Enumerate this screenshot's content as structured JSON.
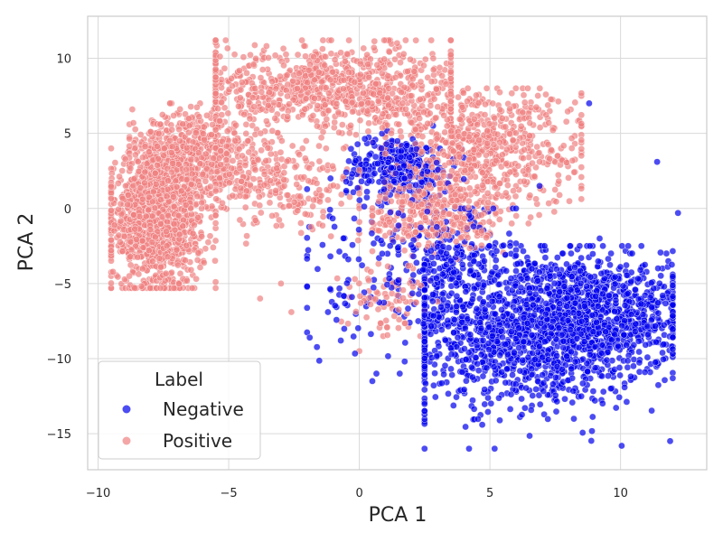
{
  "chart_data": {
    "type": "scatter",
    "title": "",
    "xlabel": "PCA 1",
    "ylabel": "PCA 2",
    "xlim": [
      -10.4,
      13.3
    ],
    "ylim": [
      -17.4,
      12.8
    ],
    "xticks": [
      -10,
      -5,
      0,
      5,
      10
    ],
    "yticks": [
      -15,
      -10,
      -5,
      0,
      5,
      10
    ],
    "xtick_labels": [
      "−10",
      "−5",
      "0",
      "5",
      "10"
    ],
    "ytick_labels": [
      "−15",
      "−10",
      "−5",
      "0",
      "5",
      "10"
    ],
    "grid": true,
    "legend": {
      "title": "Label",
      "position": "lower-left",
      "entries": [
        "Negative",
        "Positive"
      ]
    },
    "series": [
      {
        "name": "Negative",
        "color": "#0000ee",
        "clusters": [
          {
            "n": 1500,
            "cx": 6.5,
            "cy": -8.0,
            "sx": 2.6,
            "sy": 2.6,
            "xmin": 2.5,
            "xmax": 12.0,
            "ymin": -16.0,
            "ymax": -2.5
          },
          {
            "n": 500,
            "cx": 9.5,
            "cy": -7.0,
            "sx": 1.5,
            "sy": 1.8,
            "xmin": 5.5,
            "xmax": 12.0,
            "ymin": -12.0,
            "ymax": -3.0
          },
          {
            "n": 300,
            "cx": 1.5,
            "cy": 2.8,
            "sx": 1.0,
            "sy": 1.0,
            "xmin": -0.5,
            "xmax": 4.0,
            "ymin": 0.0,
            "ymax": 5.5
          },
          {
            "n": 200,
            "cx": 3.5,
            "cy": -3.5,
            "sx": 1.2,
            "sy": 2.0,
            "xmin": 1.5,
            "xmax": 6.0,
            "ymin": -8.0,
            "ymax": 0.0
          },
          {
            "n": 120,
            "cx": 0.5,
            "cy": -4.0,
            "sx": 2.0,
            "sy": 3.0,
            "xmin": -2.0,
            "xmax": 3.0,
            "ymin": -11.0,
            "ymax": 2.0
          }
        ],
        "outliers": [
          [
            8.8,
            7.0
          ],
          [
            11.4,
            3.1
          ],
          [
            12.2,
            -0.3
          ],
          [
            -1.9,
            -8.6
          ],
          [
            4.2,
            -16.0
          ],
          [
            0.5,
            -11.5
          ],
          [
            -1.2,
            -6.9
          ],
          [
            11.8,
            -7.6
          ],
          [
            6.9,
            1.5
          ],
          [
            9.2,
            -2.0
          ]
        ]
      },
      {
        "name": "Positive",
        "color": "#f08080",
        "clusters": [
          {
            "n": 1100,
            "cx": -7.8,
            "cy": -1.0,
            "sx": 0.9,
            "sy": 2.2,
            "xmin": -9.5,
            "xmax": -5.5,
            "ymin": -5.3,
            "ymax": 4.0
          },
          {
            "n": 500,
            "cx": -6.5,
            "cy": 3.5,
            "sx": 1.2,
            "sy": 1.5,
            "xmin": -8.8,
            "xmax": -3.5,
            "ymin": 0.0,
            "ymax": 7.0
          },
          {
            "n": 900,
            "cx": -1.0,
            "cy": 8.0,
            "sx": 2.8,
            "sy": 1.5,
            "xmin": -5.5,
            "xmax": 3.5,
            "ymin": 4.0,
            "ymax": 11.2
          },
          {
            "n": 700,
            "cx": 4.5,
            "cy": 4.0,
            "sx": 2.0,
            "sy": 2.0,
            "xmin": 1.0,
            "xmax": 8.5,
            "ymin": -1.0,
            "ymax": 8.0
          },
          {
            "n": 300,
            "cx": 3.0,
            "cy": -0.5,
            "sx": 1.3,
            "sy": 1.3,
            "xmin": 0.5,
            "xmax": 6.0,
            "ymin": -4.0,
            "ymax": 2.5
          },
          {
            "n": 250,
            "cx": -3.0,
            "cy": 1.5,
            "sx": 1.5,
            "sy": 1.5,
            "xmin": -5.5,
            "xmax": 0.0,
            "ymin": -3.5,
            "ymax": 4.5
          },
          {
            "n": 80,
            "cx": 1.0,
            "cy": -6.0,
            "sx": 0.8,
            "sy": 1.2,
            "xmin": -1.5,
            "xmax": 3.0,
            "ymin": -8.5,
            "ymax": -3.5
          }
        ],
        "outliers": [
          [
            -2.6,
            -6.9
          ],
          [
            -3.0,
            -5.0
          ],
          [
            -5.5,
            -4.9
          ],
          [
            0.0,
            -9.5
          ],
          [
            -3.8,
            -6.0
          ]
        ]
      }
    ]
  }
}
